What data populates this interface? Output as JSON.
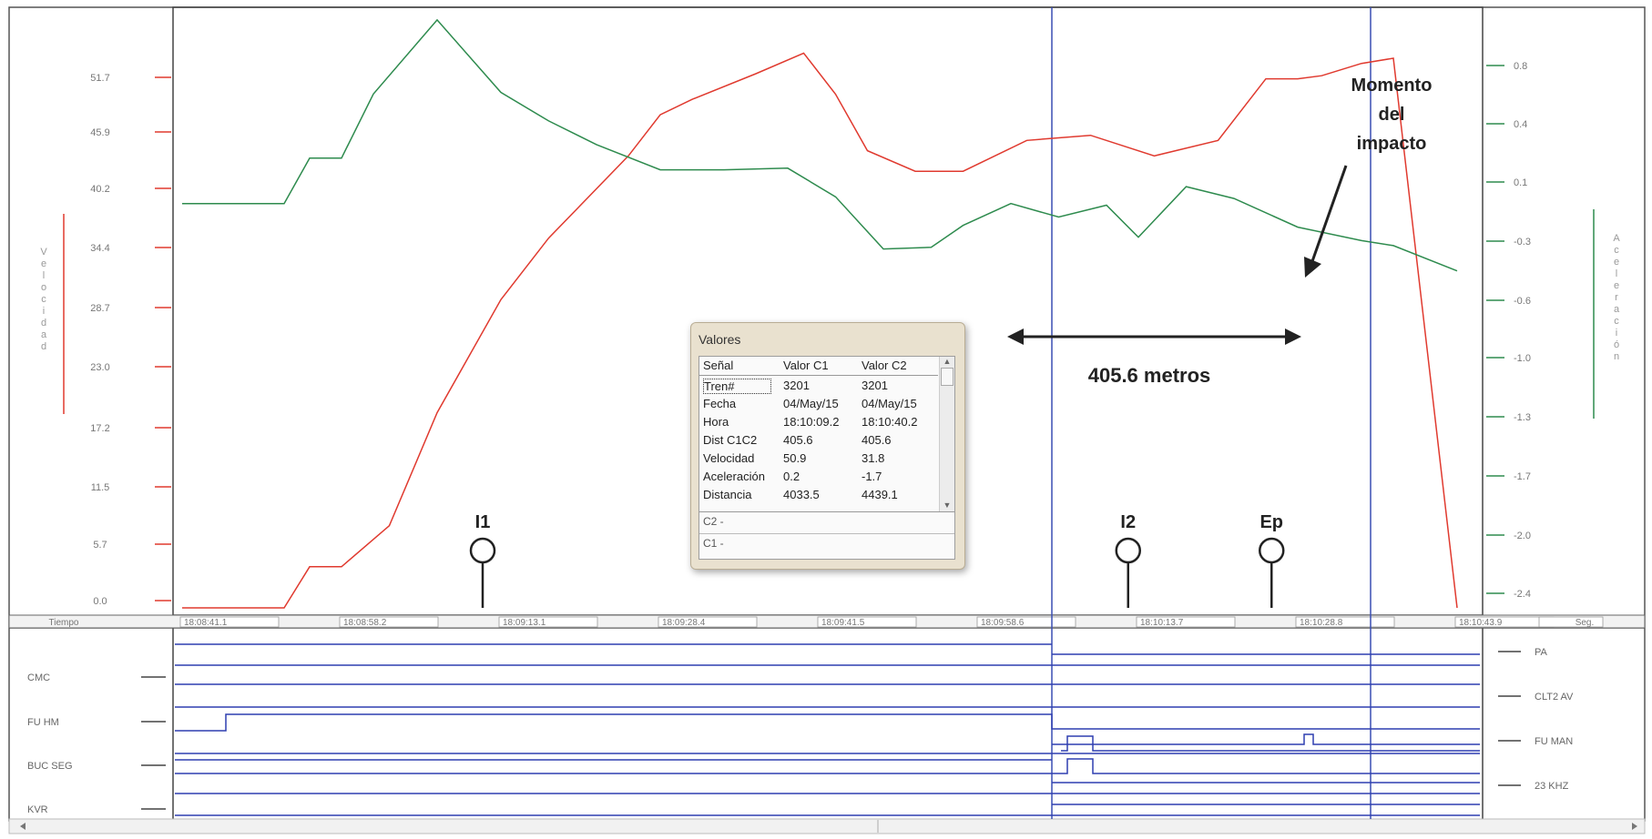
{
  "chart_data": {
    "type": "line",
    "left_axis": {
      "label": "Velocidad",
      "ticks": [
        "51.7",
        "45.9",
        "40.2",
        "34.4",
        "28.7",
        "23.0",
        "17.2",
        "11.5",
        "5.7",
        "0.0"
      ],
      "range": [
        0,
        57.4
      ],
      "color": "#e03a2f"
    },
    "right_axis": {
      "label": "Aceleración",
      "ticks": [
        "0.8",
        "0.4",
        "0.1",
        "-0.3",
        "-0.6",
        "-1.0",
        "-1.3",
        "-1.7",
        "-2.0",
        "-2.4"
      ],
      "range": [
        -2.4,
        1.1
      ],
      "color": "#2e8b4e"
    },
    "x_axis": {
      "label": "Tiempo",
      "unit": "Seg.",
      "ticks": [
        "18:08:41.1",
        "18:08:58.2",
        "18:09:13.1",
        "18:09:28.4",
        "18:09:41.5",
        "18:09:58.6",
        "18:10:13.7",
        "18:10:28.8",
        "18:10:43.9"
      ],
      "range": [
        0,
        8
      ]
    },
    "series": [
      {
        "name": "Velocidad",
        "color": "#e03a2f",
        "axis": "left",
        "x": [
          0,
          0.5,
          0.62,
          0.64,
          0.8,
          1.0,
          1.3,
          1.6,
          2.0,
          2.3,
          2.8,
          3.0,
          3.2,
          3.6,
          3.9,
          4.1,
          4.3,
          4.6,
          4.9,
          5.3,
          5.7,
          6.1,
          6.5,
          6.8,
          7.0,
          7.15,
          7.4,
          7.6,
          8
        ],
        "y": [
          0,
          0,
          0,
          0,
          4,
          4,
          8,
          19,
          30,
          36,
          44,
          48,
          49.5,
          52,
          54,
          50,
          44.5,
          42.5,
          42.5,
          45.5,
          46,
          44,
          45.5,
          51.5,
          51.5,
          51.8,
          53,
          53.5,
          0
        ]
      },
      {
        "name": "Aceleración",
        "color": "#2e8b4e",
        "axis": "right",
        "x": [
          0,
          0.5,
          0.64,
          0.8,
          1.0,
          1.2,
          1.6,
          2.0,
          2.3,
          2.6,
          3.0,
          3.4,
          3.8,
          4.1,
          4.4,
          4.7,
          4.9,
          5.2,
          5.5,
          5.8,
          6.0,
          6.3,
          6.6,
          7.0,
          7.4,
          7.6,
          8
        ],
        "y": [
          0.0,
          0.0,
          0.0,
          0.27,
          0.27,
          0.65,
          1.09,
          0.66,
          0.49,
          0.35,
          0.2,
          0.2,
          0.21,
          0.04,
          -0.27,
          -0.26,
          -0.13,
          0.0,
          -0.08,
          -0.01,
          -0.2,
          0.1,
          0.03,
          -0.14,
          -0.22,
          -0.25,
          -0.4
        ]
      }
    ],
    "cursors": [
      5.6,
      7.6
    ],
    "annotations": {
      "impact_line1": "Momento",
      "impact_line2": "del",
      "impact_line3": "impacto",
      "distance": "405.6 metros"
    },
    "markers": [
      {
        "label": "I1",
        "x": 2.0
      },
      {
        "label": "I2",
        "x": 6.05
      },
      {
        "label": "Ep",
        "x": 6.95
      }
    ],
    "digital": {
      "left_labels": [
        "CMC",
        "FU HM",
        "BUC SEG",
        "KVR"
      ],
      "right_labels": [
        "PA",
        "CLT2 AV",
        "FU MAN",
        "23 KHZ"
      ]
    }
  },
  "valores": {
    "title": "Valores",
    "headers": [
      "Señal",
      "Valor C1",
      "Valor C2"
    ],
    "rows": [
      [
        "Tren#",
        "3201",
        "3201"
      ],
      [
        "Fecha",
        "04/May/15",
        "04/May/15"
      ],
      [
        "Hora",
        "18:10:09.2",
        "18:10:40.2"
      ],
      [
        "Dist C1C2",
        "405.6",
        "405.6"
      ],
      [
        "Velocidad",
        "50.9",
        "31.8"
      ],
      [
        "Aceleración",
        "0.2",
        "-1.7"
      ],
      [
        "Distancia",
        "4033.5",
        "4439.1"
      ]
    ],
    "c2_label": "C2 -",
    "c1_label": "C1 -"
  }
}
